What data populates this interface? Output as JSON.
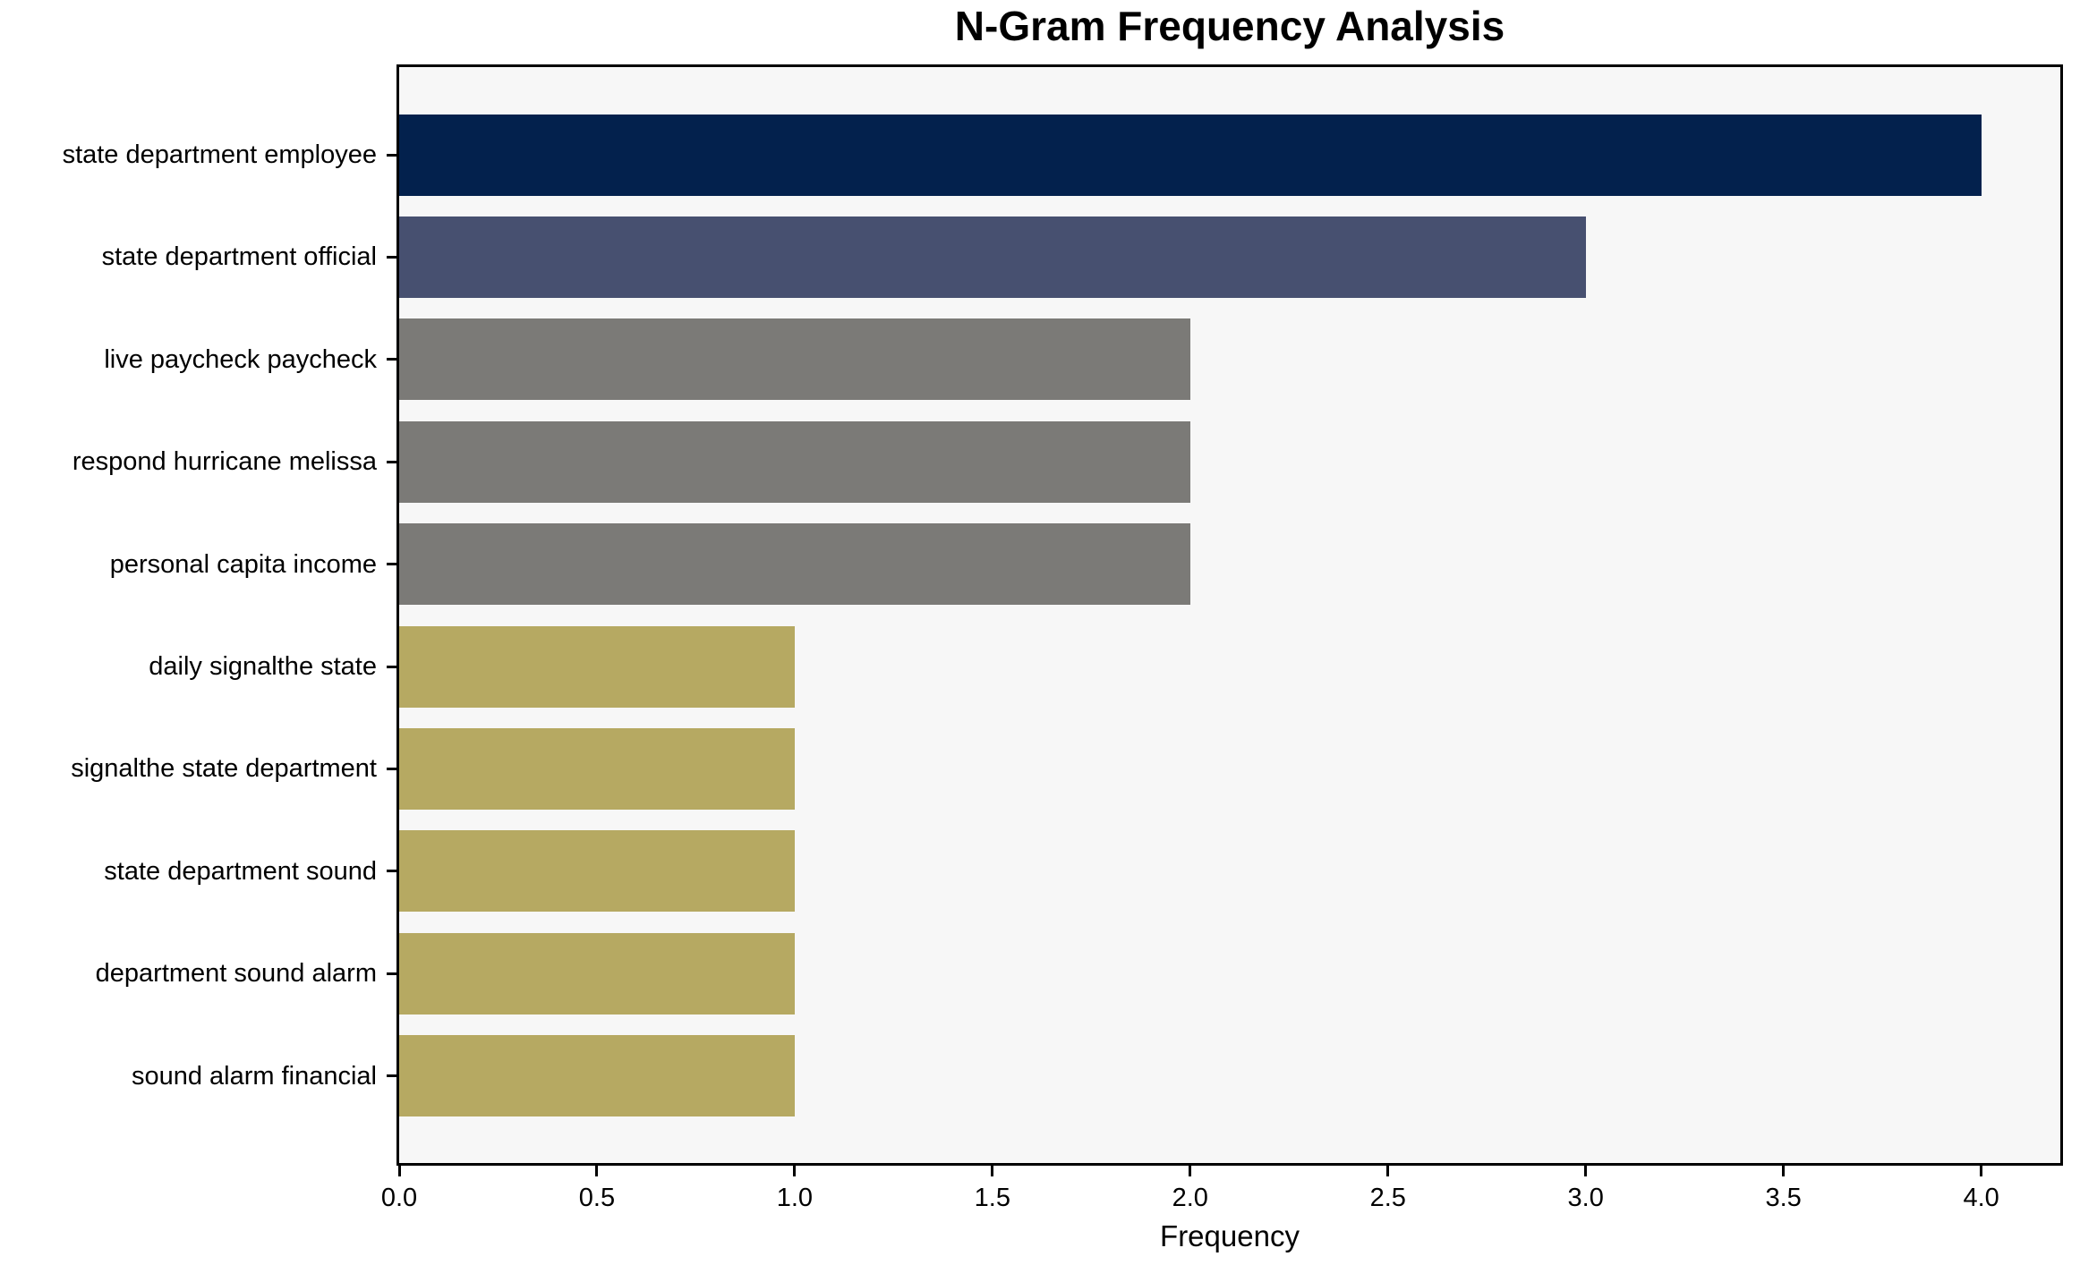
{
  "chart_data": {
    "type": "bar",
    "orientation": "horizontal",
    "title": "N-Gram Frequency Analysis",
    "xlabel": "Frequency",
    "ylabel": "",
    "categories": [
      "state department employee",
      "state department official",
      "live paycheck paycheck",
      "respond hurricane melissa",
      "personal capita income",
      "daily signalthe state",
      "signalthe state department",
      "state department sound",
      "department sound alarm",
      "sound alarm financial"
    ],
    "values": [
      4,
      3,
      2,
      2,
      2,
      1,
      1,
      1,
      1,
      1
    ],
    "bar_colors": [
      "#03214d",
      "#475070",
      "#7b7a77",
      "#7b7a77",
      "#7b7a77",
      "#b6a962",
      "#b6a962",
      "#b6a962",
      "#b6a962",
      "#b6a962"
    ],
    "xticks": [
      0.0,
      0.5,
      1.0,
      1.5,
      2.0,
      2.5,
      3.0,
      3.5,
      4.0
    ],
    "xtick_labels": [
      "0.0",
      "0.5",
      "1.0",
      "1.5",
      "2.0",
      "2.5",
      "3.0",
      "3.5",
      "4.0"
    ],
    "xlim": [
      0,
      4.2
    ],
    "grid": false,
    "legend_position": "none",
    "plot_background": "#f7f7f7",
    "figure_background": "#ffffff",
    "spine_color": "#000000",
    "text_color": "#000000"
  }
}
